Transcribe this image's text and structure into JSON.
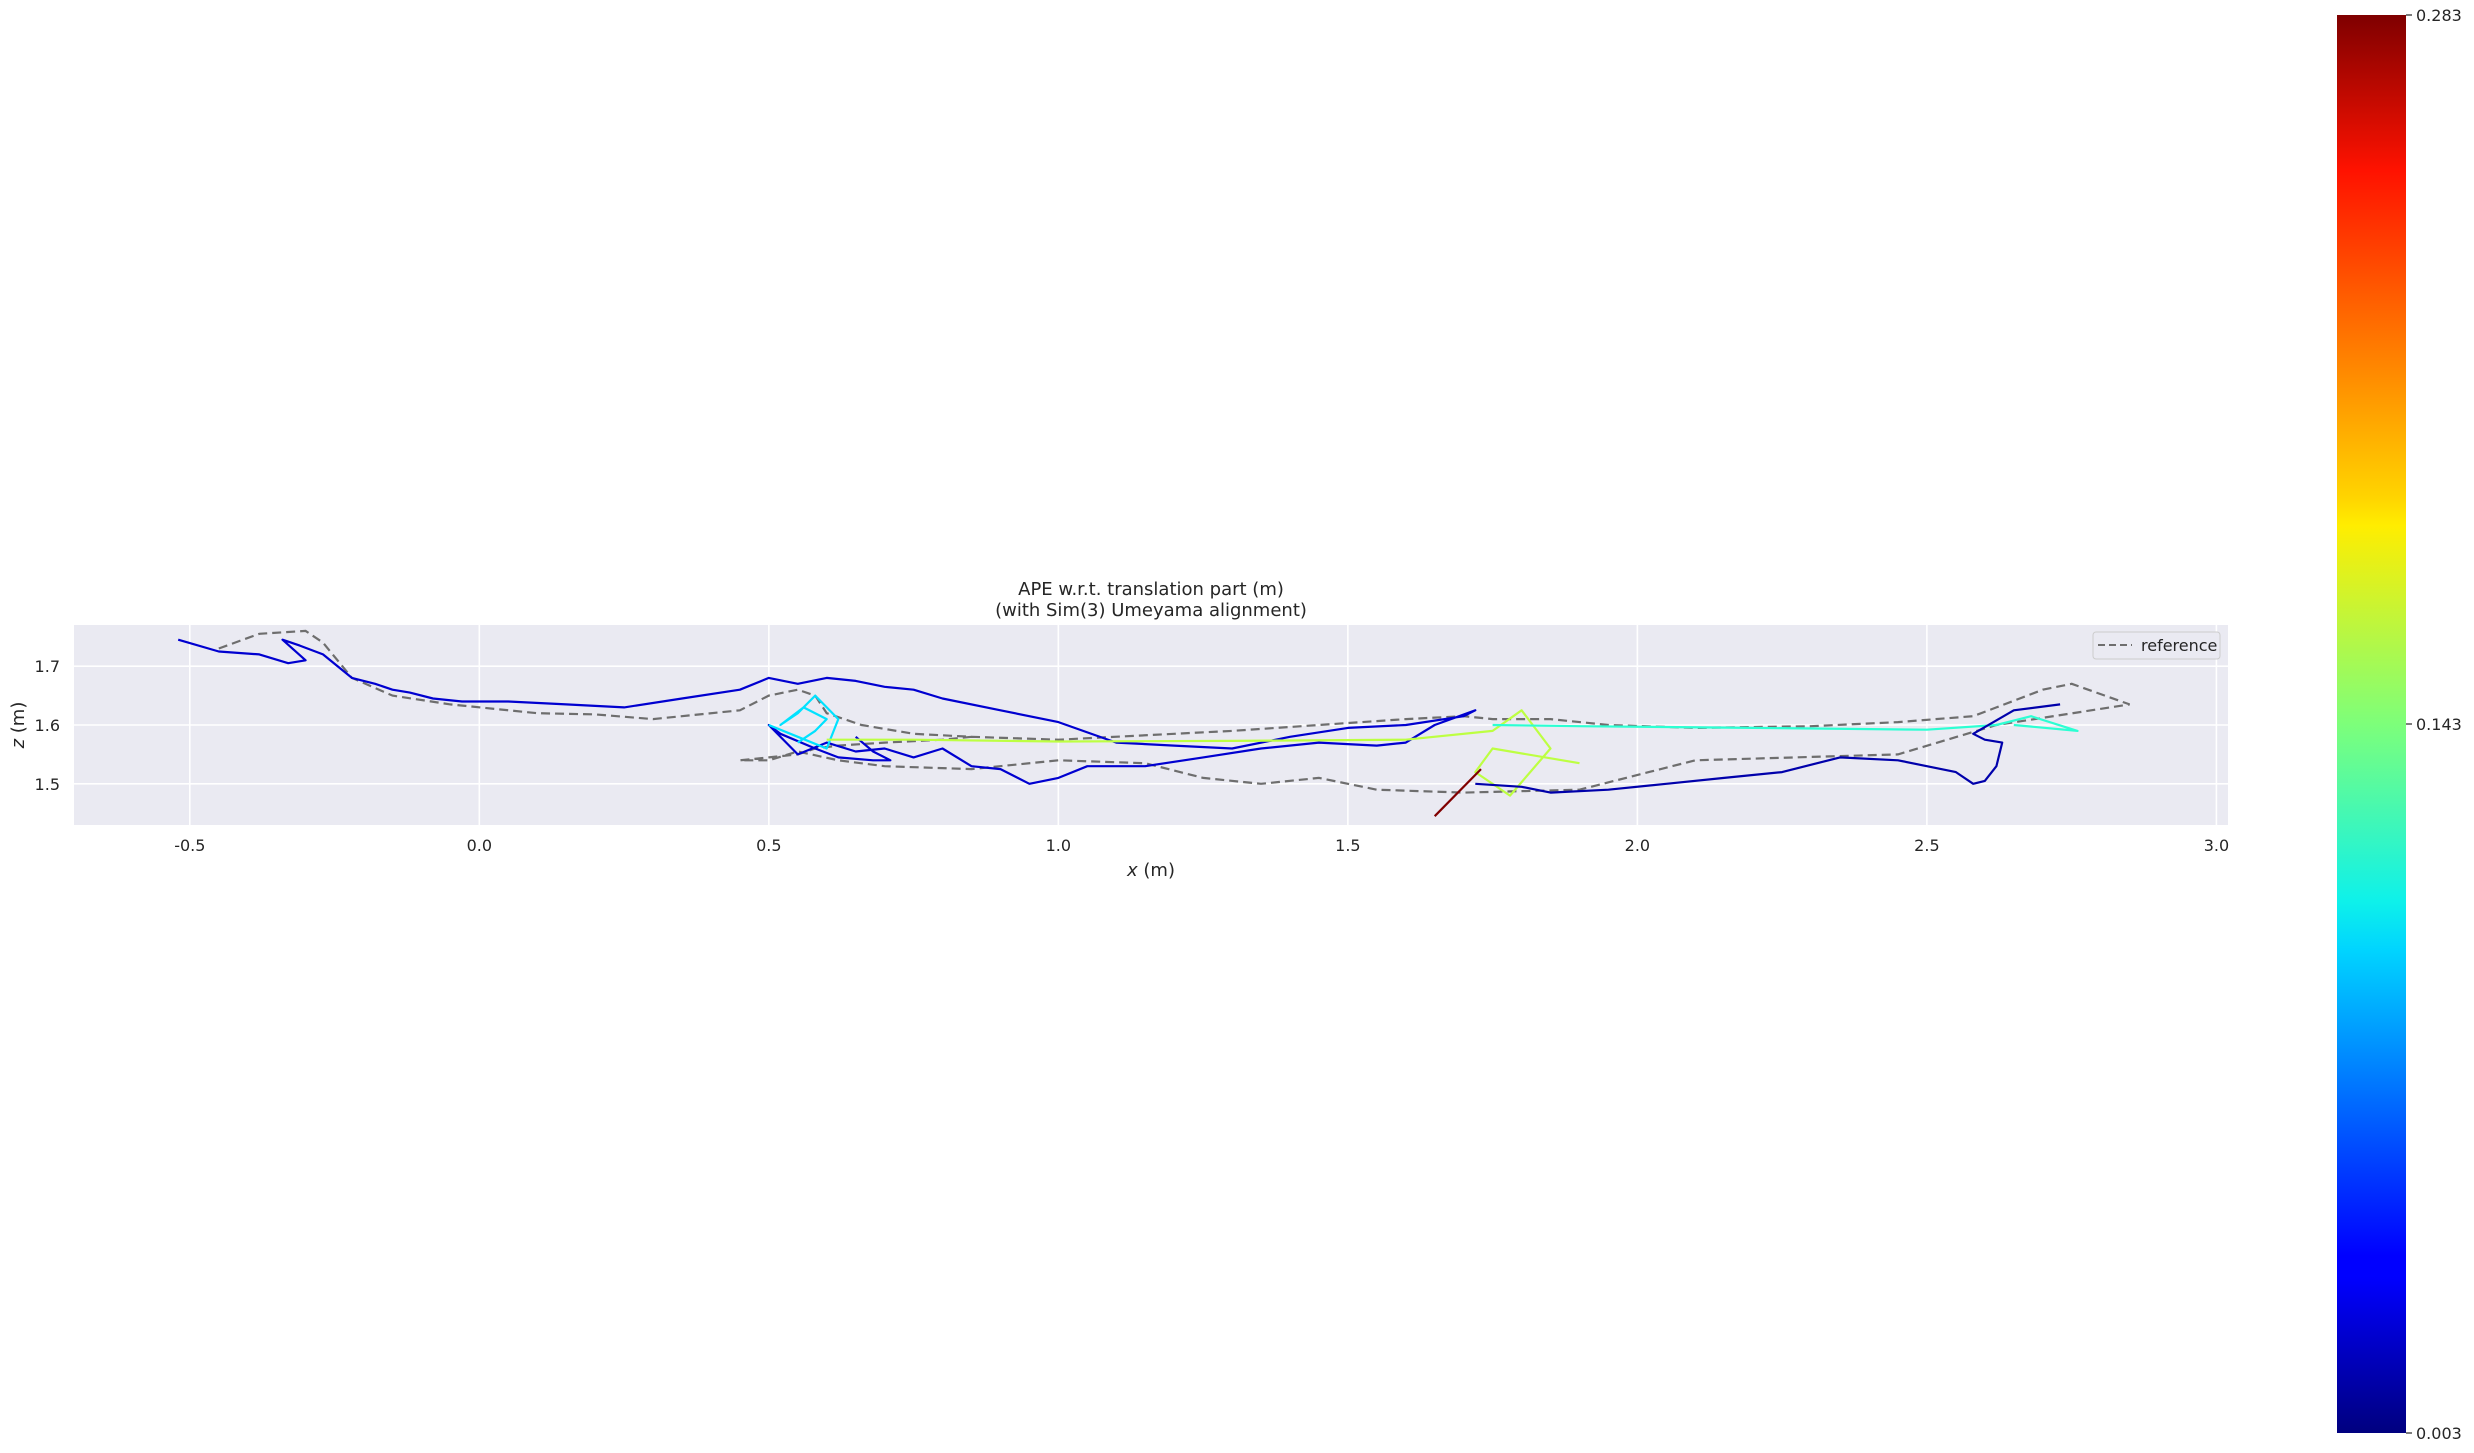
{
  "chart_data": {
    "type": "line",
    "title": "APE w.r.t. translation part (m)",
    "subtitle": "(with Sim(3) Umeyama alignment)",
    "xlabel_var": "x",
    "xlabel_unit": " (m)",
    "ylabel_var": "z",
    "ylabel_unit": " (m)",
    "xlim": [
      -0.7,
      3.02
    ],
    "ylim": [
      1.43,
      1.77
    ],
    "x_ticks": [
      "-0.5",
      "0.0",
      "0.5",
      "1.0",
      "1.5",
      "2.0",
      "2.5",
      "3.0"
    ],
    "x_tick_values": [
      -0.5,
      0.0,
      0.5,
      1.0,
      1.5,
      2.0,
      2.5,
      3.0
    ],
    "y_ticks": [
      "1.5",
      "1.6",
      "1.7"
    ],
    "y_tick_values": [
      1.5,
      1.6,
      1.7
    ],
    "grid": true,
    "legend_position": "top-right",
    "legend": {
      "reference_label": "reference"
    },
    "colorbar": {
      "colormap": "jet",
      "min": 0.003,
      "max": 0.283,
      "tick_labels": [
        "0.283",
        "0.143",
        "0.003"
      ],
      "tick_values": [
        0.283,
        0.143,
        0.003
      ]
    },
    "series": [
      {
        "name": "reference",
        "style": "dashed",
        "color": "#6e6e6e",
        "x": [
          -0.45,
          -0.38,
          -0.3,
          -0.27,
          -0.22,
          -0.15,
          -0.05,
          0.1,
          0.2,
          0.3,
          0.45,
          0.5,
          0.55,
          0.58,
          0.6,
          0.66,
          0.75,
          0.85,
          1.0,
          1.2,
          1.3,
          1.45,
          1.6,
          1.7,
          1.75,
          1.85,
          1.95,
          2.1,
          2.3,
          2.45,
          2.58,
          2.62,
          2.7,
          2.75,
          2.85,
          2.62,
          2.45,
          2.1,
          1.9,
          1.7,
          1.55,
          1.45,
          1.35,
          1.25,
          1.15,
          1.0,
          0.85,
          0.7,
          0.62,
          0.55,
          0.5,
          0.45,
          0.5,
          0.55,
          0.58,
          0.62,
          0.7,
          0.8,
          0.85
        ],
        "y": [
          1.73,
          1.755,
          1.76,
          1.74,
          1.68,
          1.65,
          1.635,
          1.62,
          1.618,
          1.61,
          1.625,
          1.65,
          1.66,
          1.65,
          1.62,
          1.6,
          1.585,
          1.58,
          1.575,
          1.585,
          1.59,
          1.6,
          1.61,
          1.615,
          1.61,
          1.61,
          1.6,
          1.595,
          1.598,
          1.605,
          1.615,
          1.63,
          1.66,
          1.67,
          1.635,
          1.6,
          1.55,
          1.54,
          1.49,
          1.485,
          1.49,
          1.51,
          1.5,
          1.51,
          1.535,
          1.54,
          1.525,
          1.53,
          1.54,
          1.555,
          1.54,
          1.54,
          1.545,
          1.55,
          1.56,
          1.565,
          1.57,
          1.575,
          1.58
        ]
      },
      {
        "name": "",
        "x": [
          -0.52,
          -0.45,
          -0.38,
          -0.33,
          -0.3,
          -0.34,
          -0.31,
          -0.27,
          -0.22,
          -0.18,
          -0.15,
          -0.12,
          -0.08,
          -0.03,
          0.05,
          0.15,
          0.25,
          0.35,
          0.45,
          0.5,
          0.55,
          0.6,
          0.65,
          0.7,
          0.75,
          0.8,
          0.9,
          1.0,
          1.1,
          1.2,
          1.3,
          1.4,
          1.5,
          1.6,
          1.7,
          1.72,
          1.65,
          1.6,
          1.55,
          1.45,
          1.35,
          1.25,
          1.15,
          1.05,
          1.0,
          0.95,
          0.9,
          0.85,
          0.8,
          0.75,
          0.7,
          0.65,
          0.6,
          0.55,
          0.5,
          0.52,
          0.58,
          0.62,
          0.68,
          0.71,
          0.68,
          0.65
        ],
        "y": [
          1.745,
          1.725,
          1.72,
          1.705,
          1.71,
          1.745,
          1.735,
          1.72,
          1.68,
          1.67,
          1.66,
          1.655,
          1.645,
          1.64,
          1.64,
          1.635,
          1.63,
          1.645,
          1.66,
          1.68,
          1.67,
          1.68,
          1.675,
          1.665,
          1.66,
          1.645,
          1.625,
          1.605,
          1.57,
          1.565,
          1.56,
          1.58,
          1.595,
          1.6,
          1.615,
          1.625,
          1.6,
          1.57,
          1.565,
          1.57,
          1.56,
          1.545,
          1.53,
          1.53,
          1.51,
          1.5,
          1.525,
          1.53,
          1.56,
          1.545,
          1.56,
          1.555,
          1.57,
          1.55,
          1.6,
          1.585,
          1.56,
          1.545,
          1.54,
          1.54,
          1.555,
          1.58
        ],
        "error": 0.025
      },
      {
        "name": "",
        "x": [
          0.5,
          0.55,
          0.6,
          0.62,
          0.58,
          0.55,
          0.52,
          0.56,
          0.6,
          0.58,
          0.55
        ],
        "y": [
          1.6,
          1.58,
          1.56,
          1.61,
          1.65,
          1.62,
          1.6,
          1.63,
          1.61,
          1.59,
          1.57
        ],
        "error": 0.1
      },
      {
        "name": "",
        "x": [
          0.6,
          0.75,
          1.0,
          1.3,
          1.6,
          1.75,
          1.8,
          1.85,
          1.78,
          1.72,
          1.75,
          1.9
        ],
        "y": [
          1.575,
          1.575,
          1.572,
          1.573,
          1.575,
          1.59,
          1.625,
          1.56,
          1.48,
          1.52,
          1.56,
          1.535
        ],
        "error": 0.16
      },
      {
        "name": "",
        "x": [
          1.75,
          1.9,
          2.2,
          2.5,
          2.62,
          2.68,
          2.76,
          2.65
        ],
        "y": [
          1.6,
          1.598,
          1.595,
          1.592,
          1.6,
          1.615,
          1.59,
          1.6
        ],
        "error": 0.12
      },
      {
        "name": "",
        "x": [
          1.72,
          1.8,
          1.85,
          1.95,
          2.05,
          2.15,
          2.25,
          2.35,
          2.45,
          2.5,
          2.55,
          2.58,
          2.6,
          2.62,
          2.63,
          2.6,
          2.58,
          2.65,
          2.73
        ],
        "y": [
          1.5,
          1.495,
          1.485,
          1.49,
          1.5,
          1.51,
          1.52,
          1.545,
          1.54,
          1.53,
          1.52,
          1.5,
          1.505,
          1.53,
          1.57,
          1.575,
          1.585,
          1.625,
          1.635
        ],
        "error": 0.015
      },
      {
        "name": "",
        "x": [
          1.65,
          1.73
        ],
        "y": [
          1.445,
          1.525
        ],
        "error": 0.283
      }
    ]
  }
}
